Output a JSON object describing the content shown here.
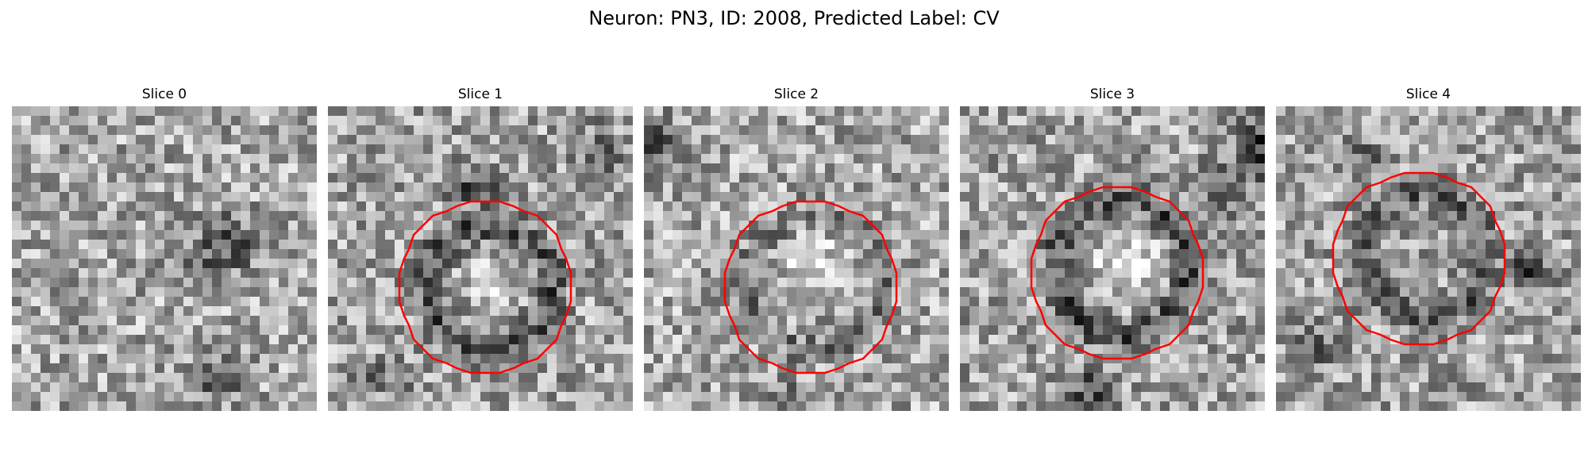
{
  "figure": {
    "suptitle": "Neuron: PN3, ID: 2008, Predicted Label: CV",
    "contour_color": "#ff0000",
    "colormap": "grayscale"
  },
  "panels": [
    {
      "title": "Slice 0"
    },
    {
      "title": "Slice 1"
    },
    {
      "title": "Slice 2"
    },
    {
      "title": "Slice 3"
    },
    {
      "title": "Slice 4"
    }
  ]
}
